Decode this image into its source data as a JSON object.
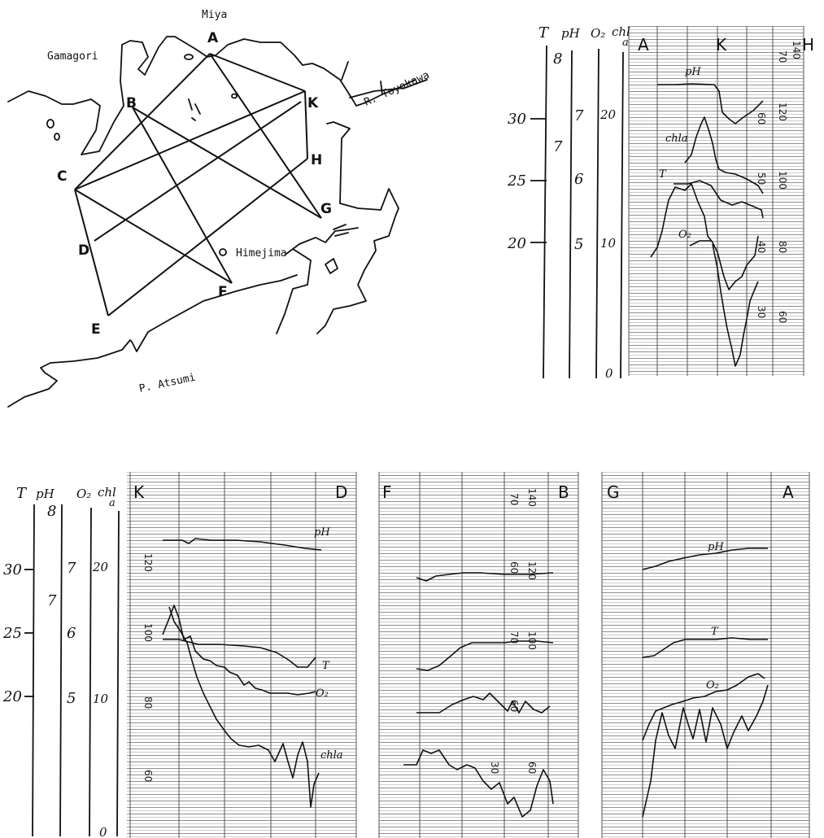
{
  "map": {
    "places": {
      "miya": "Miya",
      "gamagori": "Gamagori",
      "toyokawa": "R. Toyokawa",
      "himejima": "Himejima",
      "atsumi": "P. Atsumi"
    },
    "stations": [
      "A",
      "B",
      "C",
      "D",
      "E",
      "F",
      "G",
      "H",
      "K"
    ]
  },
  "axis_header": {
    "T": "T",
    "pH": "pH",
    "O2": "O₂",
    "chla": "chl",
    "chla_sub": "a"
  },
  "axis_ticks": {
    "T": [
      "30",
      "25",
      "20"
    ],
    "pH": [
      "8",
      "7",
      "6",
      "5"
    ],
    "pH_extra": "7",
    "O2": [
      "20",
      "10"
    ],
    "chla": [
      "0"
    ]
  },
  "panels": {
    "akh": {
      "left": "A",
      "mid": "K",
      "right": "H"
    },
    "kd": {
      "left": "K",
      "right": "D"
    },
    "fb": {
      "left": "F",
      "right": "B"
    },
    "ga": {
      "left": "G",
      "right": "A"
    }
  },
  "trace_labels": {
    "pH": "pH",
    "chla": "chla",
    "T": "T",
    "O2": "O₂"
  },
  "printed_ticks": {
    "top": [
      "70",
      "140",
      "120",
      "100",
      "80",
      "60"
    ],
    "top_inner": [
      "60",
      "50",
      "40",
      "30"
    ],
    "kd": [
      "120",
      "100",
      "80",
      "60"
    ],
    "fb_top": [
      "70",
      "140"
    ],
    "fb_mid": [
      "60",
      "120",
      "70",
      "100",
      "60",
      "30",
      "60"
    ]
  }
}
